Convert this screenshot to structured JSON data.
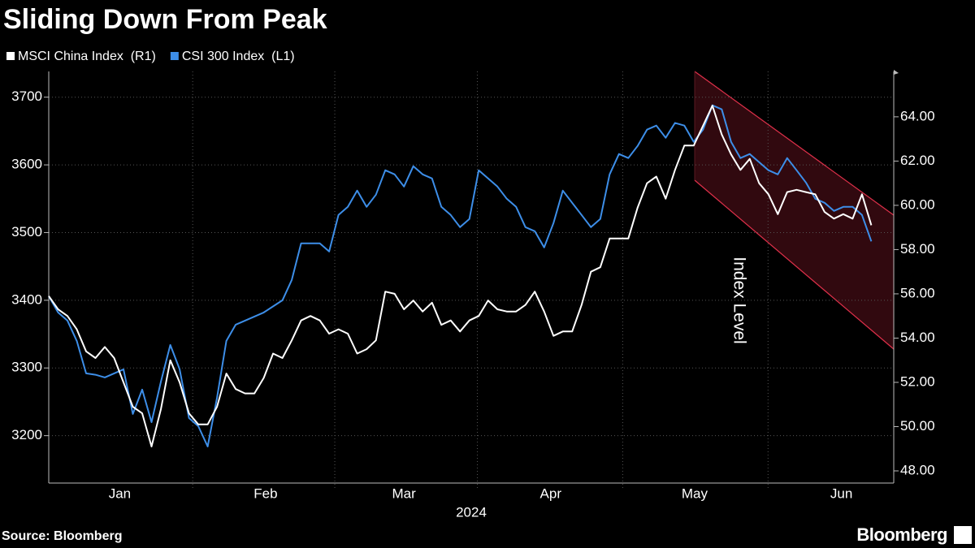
{
  "chart_data": {
    "type": "line",
    "title": "Sliding Down From Peak",
    "source": "Source: Bloomberg",
    "brand": "Bloomberg",
    "y2label": "Index Level",
    "xlabel": "2024",
    "xlim": [
      0,
      90.4
    ],
    "xticks": [
      {
        "value": 7.6,
        "label": "Jan"
      },
      {
        "value": 23.2,
        "label": "Feb"
      },
      {
        "value": 38,
        "label": "Mar"
      },
      {
        "value": 53.7,
        "label": "Apr"
      },
      {
        "value": 69.1,
        "label": "May"
      },
      {
        "value": 84.8,
        "label": "Jun"
      }
    ],
    "ylim": [
      3130,
      3738
    ],
    "yticks": [
      3200,
      3300,
      3400,
      3500,
      3600,
      3700
    ],
    "y2lim": [
      47.45,
      66.05
    ],
    "y2ticks": [
      {
        "value": 48,
        "label": "48.00"
      },
      {
        "value": 50,
        "label": "50.00"
      },
      {
        "value": 52,
        "label": "52.00"
      },
      {
        "value": 54,
        "label": "54.00"
      },
      {
        "value": 56,
        "label": "56.00"
      },
      {
        "value": 58,
        "label": "58.00"
      },
      {
        "value": 60,
        "label": "60.00"
      },
      {
        "value": 62,
        "label": "62.00"
      },
      {
        "value": 64,
        "label": "64.00"
      }
    ],
    "grid": true,
    "series": [
      {
        "name": "MSCI China Index  (R1)",
        "color": "#ffffff",
        "axis": "y2",
        "values": [
          55.9,
          55.3,
          55.0,
          54.4,
          53.4,
          53.1,
          53.6,
          53.1,
          52.0,
          50.9,
          50.6,
          49.1,
          50.8,
          53.0,
          52.0,
          50.6,
          50.1,
          50.1,
          50.9,
          52.4,
          51.7,
          51.5,
          51.5,
          52.2,
          53.3,
          53.1,
          53.9,
          54.8,
          55.0,
          54.8,
          54.2,
          54.4,
          54.2,
          53.3,
          53.5,
          53.9,
          56.1,
          56.0,
          55.3,
          55.7,
          55.2,
          55.6,
          54.6,
          54.8,
          54.3,
          54.8,
          55.0,
          55.7,
          55.3,
          55.2,
          55.2,
          55.5,
          56.1,
          55.2,
          54.1,
          54.3,
          54.3,
          55.5,
          57.0,
          57.2,
          58.5,
          58.5,
          58.5,
          59.9,
          61.0,
          61.3,
          60.3,
          61.6,
          62.7,
          62.7,
          63.6,
          64.5,
          63.2,
          62.3,
          61.6,
          62.1,
          61.0,
          60.5,
          59.6,
          60.6,
          60.7,
          60.6,
          60.5,
          59.7,
          59.4,
          59.6,
          59.4,
          60.5,
          59.1
        ]
      },
      {
        "name": "CSI 300 Index  (L1)",
        "color": "#3d8ee8",
        "values": [
          3406,
          3382,
          3370,
          3340,
          3292,
          3290,
          3286,
          3292,
          3298,
          3232,
          3268,
          3220,
          3280,
          3334,
          3298,
          3226,
          3214,
          3184,
          3256,
          3340,
          3364,
          3370,
          3376,
          3382,
          3391,
          3400,
          3430,
          3484,
          3484,
          3484,
          3472,
          3526,
          3538,
          3562,
          3538,
          3556,
          3592,
          3586,
          3568,
          3598,
          3586,
          3580,
          3538,
          3526,
          3508,
          3520,
          3592,
          3580,
          3568,
          3550,
          3538,
          3508,
          3502,
          3478,
          3514,
          3562,
          3544,
          3526,
          3508,
          3520,
          3586,
          3616,
          3610,
          3628,
          3652,
          3658,
          3640,
          3662,
          3658,
          3634,
          3652,
          3688,
          3682,
          3634,
          3610,
          3616,
          3604,
          3592,
          3586,
          3610,
          3592,
          3574,
          3550,
          3544,
          3532,
          3538,
          3538,
          3526,
          3487
        ]
      }
    ]
  }
}
